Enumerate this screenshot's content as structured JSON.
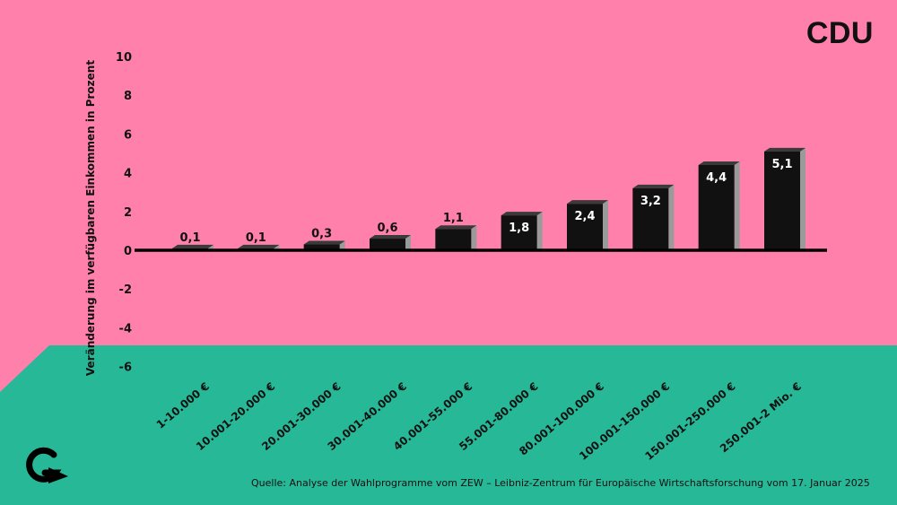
{
  "header": {
    "party": "CDU"
  },
  "footer": {
    "source": "Quelle: Analyse der Wahlprogramme vom ZEW – Leibniz-Zentrum für Europäische Wirtschaftsforschung vom 17. Januar 2025",
    "logo_icon": "g-arrow-logo-icon"
  },
  "colors": {
    "background_top": "#FF80AB",
    "background_bottom": "#26B897",
    "bar_front": "#111111",
    "bar_side": "#9A9A9A",
    "bar_top": "#3A3A3A",
    "axis": "#000000"
  },
  "chart_data": {
    "type": "bar",
    "title": "",
    "xlabel": "",
    "ylabel": "Veränderung im verfügbaren Einkommen in Prozent",
    "categories": [
      "1-10.000 €",
      "10.001-20.000 €",
      "20.001-30.000 €",
      "30.001-40.000 €",
      "40.001-55.000 €",
      "55.001-80.000 €",
      "80.001-100.000 €",
      "100.001-150.000 €",
      "150.001-250.000 €",
      "250.001-2 Mio. €"
    ],
    "values": [
      0.1,
      0.1,
      0.3,
      0.6,
      1.1,
      1.8,
      2.4,
      3.2,
      4.4,
      5.1
    ],
    "value_labels": [
      "0,1",
      "0,1",
      "0,3",
      "0,6",
      "1,1",
      "1,8",
      "2,4",
      "3,2",
      "4,4",
      "5,1"
    ],
    "ylim": [
      -6,
      10
    ],
    "yticks": [
      10,
      8,
      6,
      4,
      2,
      0,
      -2,
      -4,
      -6
    ],
    "grid": false,
    "legend": "none"
  }
}
